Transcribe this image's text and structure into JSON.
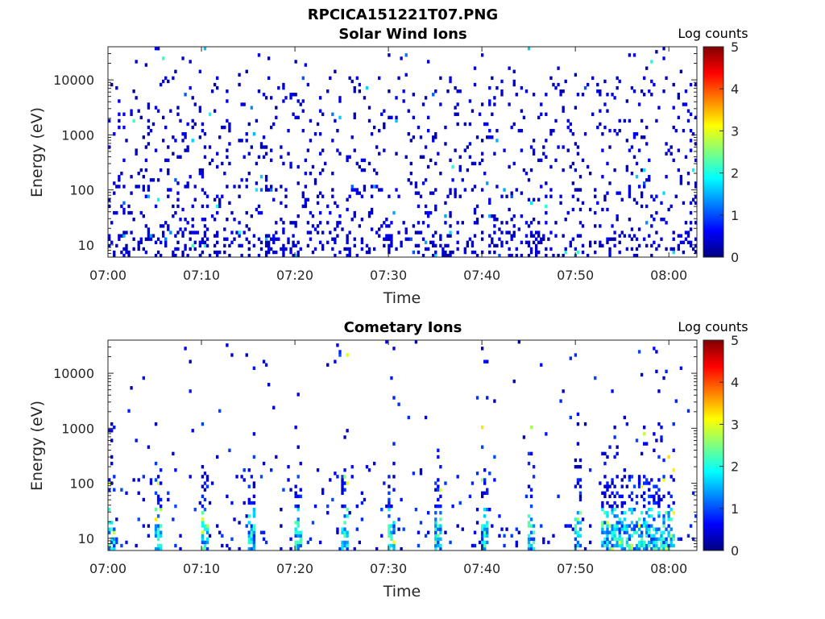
{
  "figure_title": "RPCICA151221T07.PNG",
  "chart_data": [
    {
      "type": "heatmap",
      "title": "Solar Wind Ions",
      "xlabel": "Time",
      "ylabel": "Energy (eV)",
      "x_ticks": [
        "07:00",
        "07:10",
        "07:20",
        "07:30",
        "07:40",
        "07:50",
        "08:00"
      ],
      "y_ticks": [
        "10",
        "100",
        "1000",
        "10000"
      ],
      "y_scale": "log",
      "ylim": [
        6,
        40000
      ],
      "xlim": [
        "07:00",
        "08:03"
      ],
      "colorbar": {
        "label": "Log counts",
        "ticks": [
          "0",
          "1",
          "2",
          "3",
          "4",
          "5"
        ],
        "range": [
          0,
          5
        ],
        "colormap": "jet"
      },
      "pattern": "sparse"
    },
    {
      "type": "heatmap",
      "title": "Cometary Ions",
      "xlabel": "Time",
      "ylabel": "Energy (eV)",
      "x_ticks": [
        "07:00",
        "07:10",
        "07:20",
        "07:30",
        "07:40",
        "07:50",
        "08:00"
      ],
      "y_ticks": [
        "10",
        "100",
        "1000",
        "10000"
      ],
      "y_scale": "log",
      "ylim": [
        6,
        40000
      ],
      "xlim": [
        "07:00",
        "08:03"
      ],
      "colorbar": {
        "label": "Log counts",
        "ticks": [
          "0",
          "1",
          "2",
          "3",
          "4",
          "5"
        ],
        "range": [
          0,
          5
        ],
        "colormap": "jet"
      },
      "pattern": "bursts"
    }
  ]
}
